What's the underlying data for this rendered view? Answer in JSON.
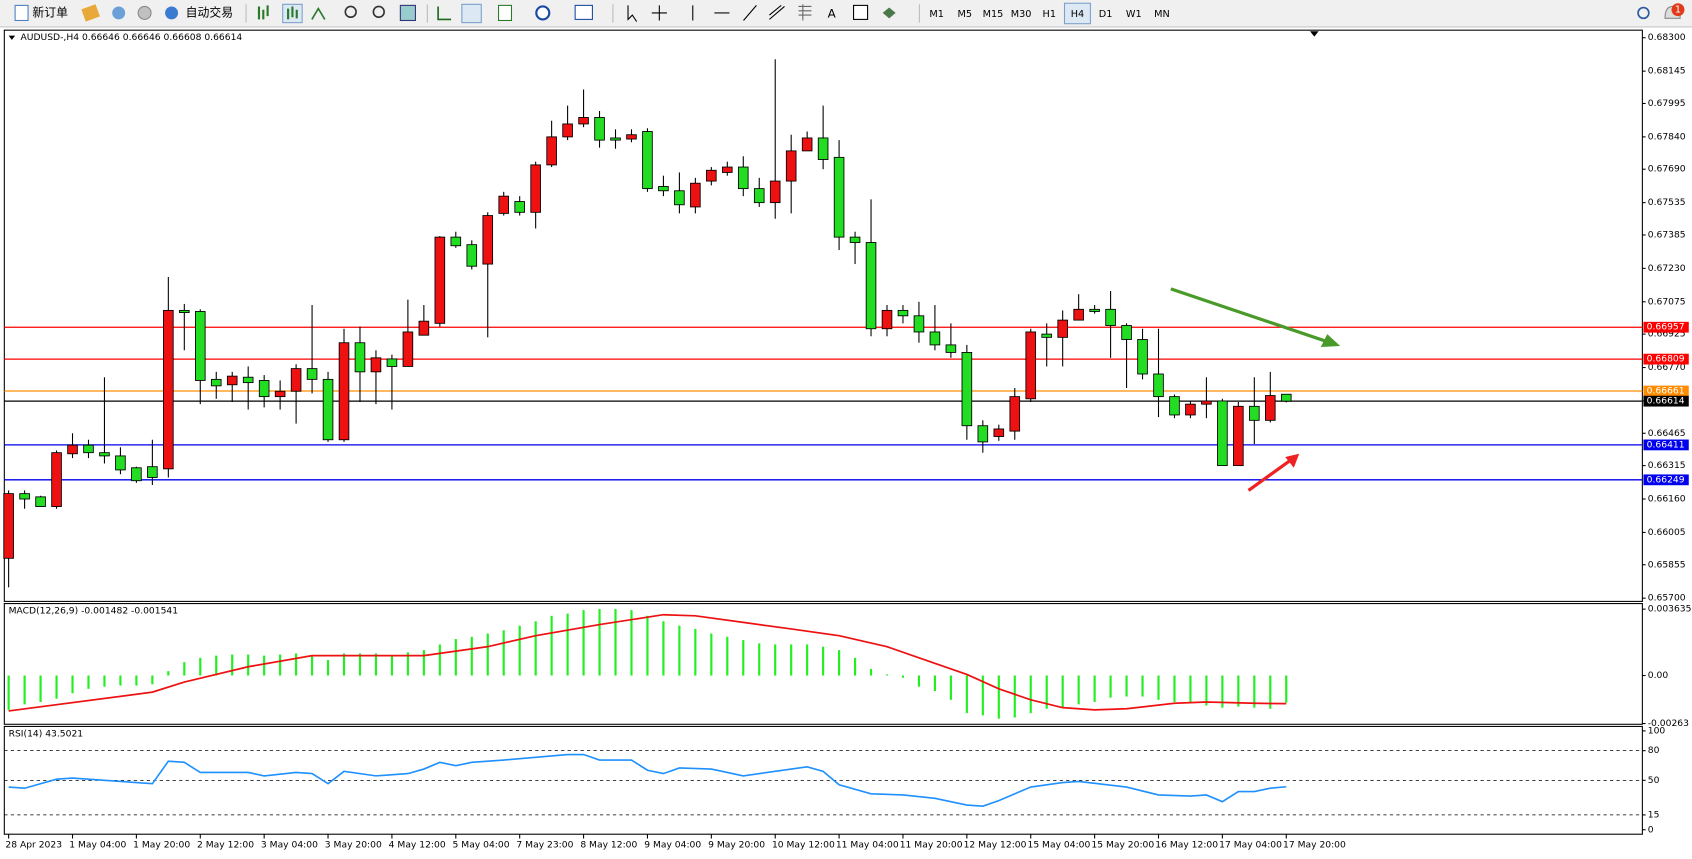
{
  "toolbar": {
    "new_order": "新订单",
    "auto_trading": "自动交易",
    "timeframes": [
      "M1",
      "M5",
      "M15",
      "M30",
      "H1",
      "H4",
      "D1",
      "W1",
      "MN"
    ],
    "active_timeframe": 5,
    "notification_count": "1"
  },
  "chart_data": [
    {
      "type": "candlestick",
      "title": "AUDUSD-,H4  0.66646 0.66646 0.66608 0.66614",
      "categories": [
        "28 Apr 2023",
        null,
        null,
        null,
        "1 May 04:00",
        null,
        null,
        null,
        "1 May 20:00",
        null,
        null,
        null,
        "2 May 12:00",
        null,
        null,
        null,
        "3 May 04:00",
        null,
        null,
        null,
        "3 May 20:00",
        null,
        null,
        null,
        "4 May 12:00",
        null,
        null,
        null,
        "5 May 04:00",
        null,
        null,
        null,
        "7 May 23:00",
        null,
        null,
        null,
        "8 May 12:00",
        null,
        null,
        null,
        "9 May 04:00",
        null,
        null,
        null,
        "9 May 20:00",
        null,
        null,
        null,
        "10 May 12:00",
        null,
        null,
        null,
        "11 May 04:00",
        null,
        null,
        null,
        "11 May 20:00",
        null,
        null,
        null,
        "12 May 12:00",
        null,
        null,
        null,
        "15 May 04:00",
        null,
        null,
        null,
        "15 May 20:00",
        null,
        null,
        null,
        "16 May 12:00",
        null,
        null,
        null,
        "17 May 04:00",
        null,
        null,
        null,
        "17 May 20:00"
      ],
      "open": [
        0.65885,
        0.66185,
        0.6617,
        0.66125,
        0.6637,
        0.6641,
        0.66375,
        0.6636,
        0.66305,
        0.6631,
        0.663,
        0.67035,
        0.6703,
        0.66715,
        0.6669,
        0.66725,
        0.6671,
        0.66635,
        0.6666,
        0.66765,
        0.66715,
        0.66435,
        0.66885,
        0.6675,
        0.6681,
        0.66775,
        0.6692,
        0.66975,
        0.67375,
        0.6734,
        0.6725,
        0.67485,
        0.6754,
        0.6749,
        0.6771,
        0.6784,
        0.679,
        0.6793,
        0.67835,
        0.6783,
        0.67865,
        0.6761,
        0.6759,
        0.67515,
        0.67635,
        0.67675,
        0.677,
        0.676,
        0.67535,
        0.67635,
        0.67775,
        0.67835,
        0.67745,
        0.67375,
        0.6735,
        0.6695,
        0.67035,
        0.6701,
        0.66935,
        0.66875,
        0.6684,
        0.665,
        0.6645,
        0.66475,
        0.66625,
        0.66925,
        0.6691,
        0.6699,
        0.6704,
        0.6704,
        0.66965,
        0.669,
        0.6674,
        0.66635,
        0.6655,
        0.666,
        0.66615,
        0.66315,
        0.6659,
        0.66525,
        0.66646
      ],
      "high": [
        0.662,
        0.662,
        0.66175,
        0.66385,
        0.66465,
        0.66435,
        0.66725,
        0.664,
        0.6631,
        0.66435,
        0.6719,
        0.67065,
        0.6704,
        0.6675,
        0.6675,
        0.66775,
        0.66735,
        0.6671,
        0.66785,
        0.6706,
        0.6675,
        0.6695,
        0.6696,
        0.6685,
        0.6683,
        0.67085,
        0.6706,
        0.6738,
        0.674,
        0.6736,
        0.6749,
        0.67585,
        0.67565,
        0.67725,
        0.67915,
        0.67985,
        0.6806,
        0.6796,
        0.67875,
        0.67875,
        0.6788,
        0.6766,
        0.67675,
        0.6765,
        0.677,
        0.67725,
        0.6775,
        0.6765,
        0.682,
        0.6785,
        0.67865,
        0.67985,
        0.67825,
        0.674,
        0.6755,
        0.6706,
        0.6706,
        0.67075,
        0.6706,
        0.66975,
        0.66875,
        0.66525,
        0.66505,
        0.66675,
        0.6695,
        0.66975,
        0.67035,
        0.6711,
        0.6706,
        0.67125,
        0.66975,
        0.6695,
        0.6695,
        0.66645,
        0.66615,
        0.66725,
        0.66625,
        0.6661,
        0.66725,
        0.6675,
        0.66646
      ],
      "low": [
        0.6575,
        0.66115,
        0.66125,
        0.66115,
        0.6635,
        0.6635,
        0.66325,
        0.66275,
        0.66235,
        0.66225,
        0.6626,
        0.6685,
        0.666,
        0.66625,
        0.6661,
        0.66575,
        0.66585,
        0.66575,
        0.6651,
        0.6665,
        0.66425,
        0.66425,
        0.6661,
        0.666,
        0.66575,
        0.66775,
        0.6692,
        0.6696,
        0.67325,
        0.67225,
        0.6691,
        0.67475,
        0.67475,
        0.67415,
        0.677,
        0.67825,
        0.67885,
        0.6779,
        0.67785,
        0.67815,
        0.67585,
        0.67565,
        0.67485,
        0.67485,
        0.67615,
        0.6766,
        0.67565,
        0.67515,
        0.6746,
        0.67485,
        0.67775,
        0.6769,
        0.67315,
        0.6725,
        0.66915,
        0.66915,
        0.66975,
        0.66885,
        0.6685,
        0.66815,
        0.66435,
        0.66375,
        0.6643,
        0.66435,
        0.6661,
        0.66775,
        0.66775,
        0.6699,
        0.6702,
        0.66815,
        0.66675,
        0.66715,
        0.6654,
        0.66535,
        0.66535,
        0.66535,
        0.66315,
        0.66315,
        0.66415,
        0.66515,
        0.66608
      ],
      "close": [
        0.66185,
        0.6616,
        0.66125,
        0.66375,
        0.6641,
        0.66375,
        0.6636,
        0.66295,
        0.66245,
        0.6626,
        0.67035,
        0.67025,
        0.6671,
        0.66685,
        0.6673,
        0.667,
        0.66635,
        0.6666,
        0.66765,
        0.66715,
        0.66435,
        0.66885,
        0.6675,
        0.66815,
        0.66775,
        0.66935,
        0.66985,
        0.67375,
        0.67335,
        0.6724,
        0.67475,
        0.67565,
        0.6749,
        0.6771,
        0.6784,
        0.679,
        0.6793,
        0.67825,
        0.67825,
        0.6785,
        0.676,
        0.6759,
        0.67525,
        0.67625,
        0.67685,
        0.677,
        0.676,
        0.67535,
        0.67635,
        0.67775,
        0.67835,
        0.67735,
        0.67375,
        0.6735,
        0.6695,
        0.67035,
        0.6701,
        0.66935,
        0.66875,
        0.6684,
        0.665,
        0.66425,
        0.66485,
        0.66635,
        0.66935,
        0.6691,
        0.6699,
        0.6704,
        0.6703,
        0.66965,
        0.669,
        0.6674,
        0.66635,
        0.6655,
        0.666,
        0.66615,
        0.66315,
        0.6659,
        0.66525,
        0.6664,
        0.66614
      ],
      "up_color": "#ee1111",
      "down_color": "#22dd22",
      "ylim": [
        0.65685,
        0.68335
      ],
      "yticks": [
        {
          "value": 0.683,
          "label": "0.68300"
        },
        0.68145,
        0.67995,
        {
          "value": 0.6784,
          "label": "0.67840"
        },
        {
          "value": 0.6769,
          "label": "0.67690"
        },
        0.67535,
        0.67385,
        {
          "value": 0.6723,
          "label": "0.67230"
        },
        0.67075,
        0.66925,
        {
          "value": 0.6677,
          "label": "0.66770"
        },
        0.66615,
        0.66465,
        0.66315,
        {
          "value": 0.6616,
          "label": "0.66160"
        },
        0.66005,
        0.65855,
        {
          "value": 0.657,
          "label": "0.65700"
        }
      ],
      "levels": [
        {
          "value": 0.66957,
          "color": "#ff0000"
        },
        {
          "value": 0.66809,
          "color": "#ff0000"
        },
        {
          "value": 0.66661,
          "color": "#ff8c00"
        },
        {
          "value": 0.66614,
          "color": "#000000"
        },
        {
          "value": 0.66411,
          "color": "#0000ee"
        },
        {
          "value": 0.66249,
          "color": "#0000ee"
        }
      ]
    },
    {
      "type": "macd",
      "title": "MACD(12,26,9) -0.001482 -0.001541",
      "histogram": [
        -0.00188,
        -0.00158,
        -0.00145,
        -0.00127,
        -0.00097,
        -0.00073,
        -0.00061,
        -0.00055,
        -0.00055,
        -0.00048,
        0.00024,
        0.00073,
        0.00097,
        0.00109,
        0.00115,
        0.00115,
        0.00109,
        0.00115,
        0.00121,
        0.00109,
        0.00085,
        0.00121,
        0.00121,
        0.00121,
        0.00109,
        0.00127,
        0.00139,
        0.0017,
        0.002,
        0.00212,
        0.0023,
        0.00248,
        0.00273,
        0.00297,
        0.00327,
        0.00339,
        0.00358,
        0.00364,
        0.00364,
        0.00358,
        0.00327,
        0.00297,
        0.00273,
        0.00255,
        0.0023,
        0.00212,
        0.00194,
        0.00176,
        0.0017,
        0.0017,
        0.0017,
        0.00158,
        0.00139,
        0.00097,
        0.00036,
        6e-05,
        -0.00012,
        -0.00061,
        -0.00085,
        -0.00133,
        -0.00206,
        -0.00218,
        -0.00236,
        -0.0023,
        -0.00206,
        -0.00182,
        -0.00176,
        -0.00158,
        -0.00145,
        -0.00121,
        -0.00115,
        -0.00115,
        -0.00133,
        -0.00145,
        -0.00152,
        -0.00164,
        -0.00176,
        -0.0017,
        -0.00176,
        -0.00182,
        -0.001482
      ],
      "histogram_color": "#22ee22",
      "signal": {
        "color": "#ee1111",
        "x": [
          0,
          9,
          11,
          15,
          19,
          26,
          30,
          33,
          37,
          41,
          43,
          46,
          49,
          52,
          55,
          57,
          60,
          62,
          64,
          66,
          68,
          70,
          73,
          75,
          78,
          80
        ],
        "values": [
          -0.00194,
          -0.00091,
          -0.00036,
          0.00048,
          0.00109,
          0.00109,
          0.00158,
          0.00218,
          0.00279,
          0.00333,
          0.00327,
          0.00291,
          0.00255,
          0.00218,
          0.00158,
          0.00097,
          6e-05,
          -0.00073,
          -0.00133,
          -0.00176,
          -0.00188,
          -0.00182,
          -0.00152,
          -0.00145,
          -0.00152,
          -0.001541
        ]
      },
      "ylim": [
        -0.00267,
        0.00394
      ],
      "yticks": [
        0.003635,
        {
          "value": 0,
          "label": "0.00"
        },
        -0.00263
      ]
    },
    {
      "type": "line",
      "title": "RSI(14) 43.5021",
      "color": "#1e90ff",
      "x": [
        0,
        1,
        3,
        4,
        6,
        9,
        10,
        11,
        12,
        15,
        16,
        18,
        19,
        20,
        21,
        23,
        25,
        26,
        27,
        28,
        29,
        31,
        35,
        36,
        37,
        39,
        40,
        41,
        42,
        44,
        45,
        46,
        48,
        50,
        51,
        52,
        54,
        56,
        58,
        60,
        61,
        62,
        64,
        66,
        67,
        70,
        72,
        74,
        75,
        76,
        77,
        78,
        79,
        80
      ],
      "values": [
        43.2,
        42,
        51.1,
        52.3,
        50,
        46.6,
        69.3,
        68.2,
        58,
        58,
        54.5,
        58,
        56.8,
        46.6,
        59.1,
        54.5,
        56.8,
        61.4,
        68.2,
        64.8,
        68.2,
        70.5,
        76.1,
        76.1,
        70.5,
        70.5,
        60.2,
        56.8,
        62.5,
        61.4,
        58,
        54.5,
        59.1,
        63.6,
        59.1,
        45.5,
        36.4,
        35.2,
        31.8,
        25,
        23.9,
        29.5,
        43.2,
        47.7,
        48.9,
        43.2,
        35.2,
        34.1,
        35.2,
        28.4,
        38.6,
        38.6,
        42,
        43.5021
      ],
      "ylim": [
        -4.5,
        104.5
      ],
      "yticks": [
        100,
        80,
        50,
        15,
        0
      ],
      "levels": [
        80,
        50,
        15
      ]
    }
  ]
}
